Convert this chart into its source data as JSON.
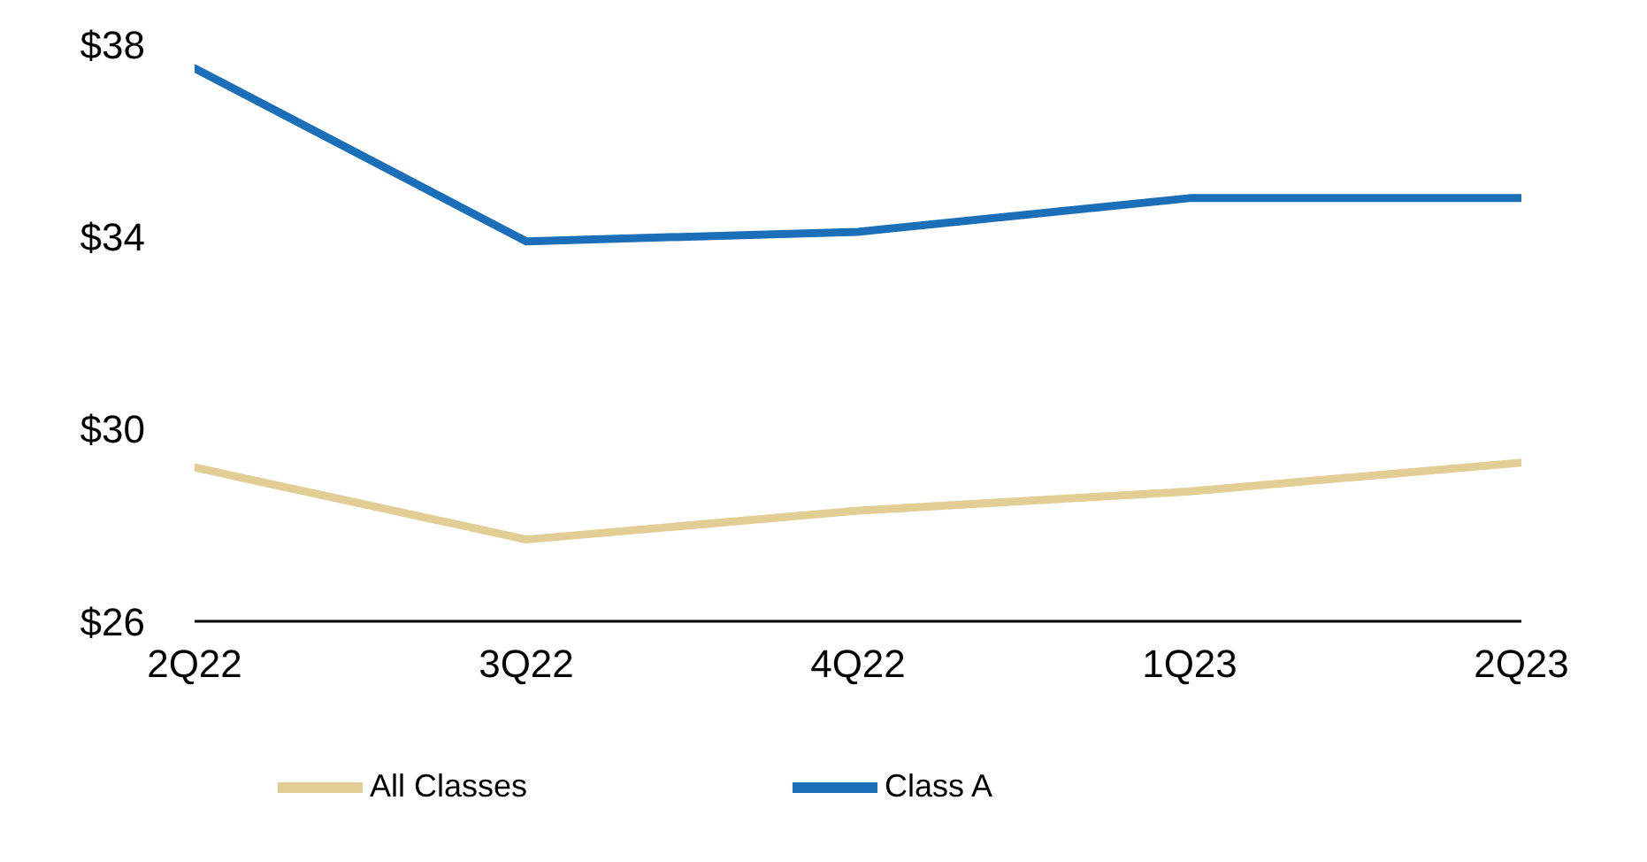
{
  "chart_data": {
    "type": "line",
    "categories": [
      "2Q22",
      "3Q22",
      "4Q22",
      "1Q23",
      "2Q23"
    ],
    "series": [
      {
        "name": "Class A",
        "color": "#1a6fb8",
        "values": [
          37.5,
          33.9,
          34.1,
          34.8,
          34.8
        ]
      },
      {
        "name": "All Classes",
        "color": "#e2cd95",
        "values": [
          29.2,
          27.7,
          28.3,
          28.7,
          29.3
        ]
      }
    ],
    "ylim": [
      26,
      38
    ],
    "yticks": [
      {
        "value": 26,
        "label": "$26"
      },
      {
        "value": 30,
        "label": "$30"
      },
      {
        "value": 34,
        "label": "$34"
      },
      {
        "value": 38,
        "label": "$38"
      }
    ],
    "grid": false,
    "legend": "bottom",
    "marker": "none",
    "line_style": "solid"
  }
}
